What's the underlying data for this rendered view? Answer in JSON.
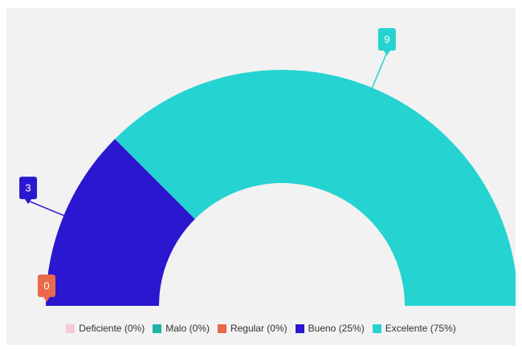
{
  "chart_data": {
    "type": "pie",
    "variant": "semi-donut",
    "categories": [
      "Deficiente (0%)",
      "Malo (0%)",
      "Regular (0%)",
      "Bueno (25%)",
      "Excelente (75%)"
    ],
    "values": [
      0,
      0,
      0,
      3,
      9
    ],
    "colors": [
      "#f7c9dc",
      "#1fb3a8",
      "#e9694a",
      "#2a17cf",
      "#25d3d0"
    ],
    "data_labels": [
      "",
      "",
      "0",
      "3",
      "9"
    ],
    "legend_position": "bottom",
    "background": "#f2f2f2"
  }
}
